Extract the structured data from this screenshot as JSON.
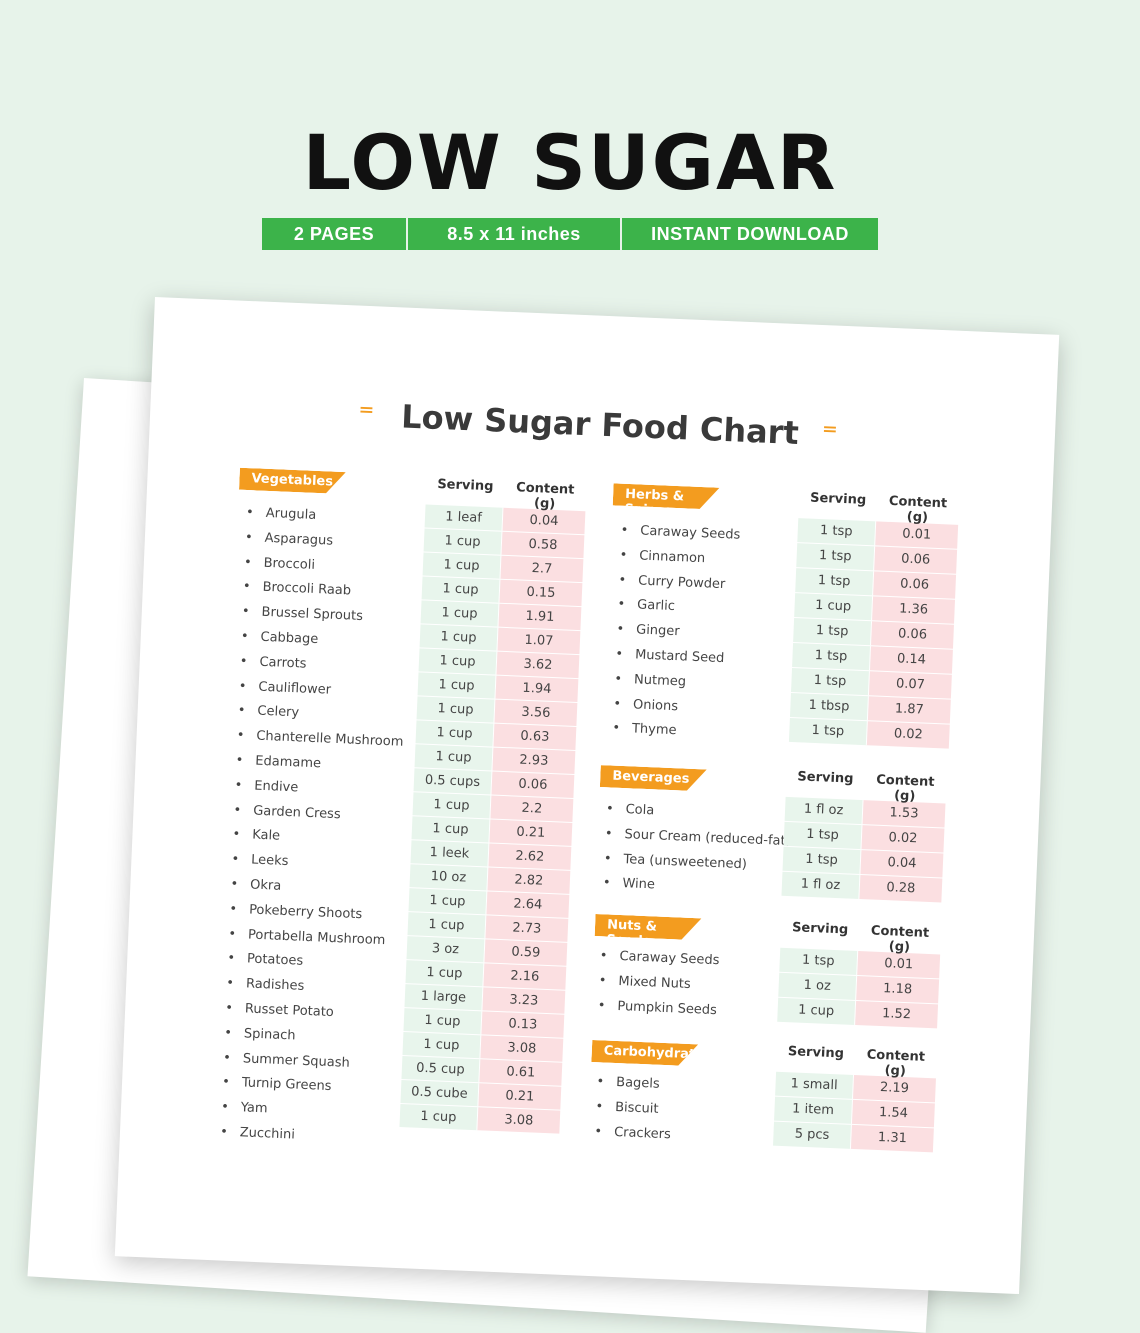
{
  "hero": {
    "title": "LOW SUGAR",
    "badges": [
      "2 PAGES",
      "8.5 x 11 inches",
      "INSTANT DOWNLOAD"
    ]
  },
  "colors": {
    "background": "#e7f3ea",
    "badge_green": "#3cb34a",
    "label_orange": "#f39c1f",
    "serving_cell": "#e8f5ec",
    "content_cell": "#fbdfe1"
  },
  "chart": {
    "title": "Low Sugar Food Chart",
    "col_serving": "Serving",
    "col_content": "Content (g)",
    "sections": {
      "vegetables": {
        "label": "Vegetables",
        "items": [
          "Arugula",
          "Asparagus",
          "Broccoli",
          "Broccoli Raab",
          "Brussel Sprouts",
          "Cabbage",
          "Carrots",
          "Cauliflower",
          "Celery",
          "Chanterelle Mushroom",
          "Edamame",
          "Endive",
          "Garden Cress",
          "Kale",
          "Leeks",
          "Okra",
          "Pokeberry Shoots",
          "Portabella Mushroom",
          "Potatoes",
          "Radishes",
          "Russet Potato",
          "Spinach",
          "Summer Squash",
          "Turnip Greens",
          "Yam",
          "Zucchini"
        ],
        "rows": [
          [
            "1 leaf",
            "0.04"
          ],
          [
            "1 cup",
            "0.58"
          ],
          [
            "1 cup",
            "2.7"
          ],
          [
            "1 cup",
            "0.15"
          ],
          [
            "1 cup",
            "1.91"
          ],
          [
            "1 cup",
            "1.07"
          ],
          [
            "1 cup",
            "3.62"
          ],
          [
            "1 cup",
            "1.94"
          ],
          [
            "1 cup",
            "3.56"
          ],
          [
            "1 cup",
            "0.63"
          ],
          [
            "1 cup",
            "2.93"
          ],
          [
            "0.5 cups",
            "0.06"
          ],
          [
            "1 cup",
            "2.2"
          ],
          [
            "1 cup",
            "0.21"
          ],
          [
            "1 leek",
            "2.62"
          ],
          [
            "10 oz",
            "2.82"
          ],
          [
            "1 cup",
            "2.64"
          ],
          [
            "1 cup",
            "2.73"
          ],
          [
            "3 oz",
            "0.59"
          ],
          [
            "1 cup",
            "2.16"
          ],
          [
            "1 large",
            "3.23"
          ],
          [
            "1 cup",
            "0.13"
          ],
          [
            "1 cup",
            "3.08"
          ],
          [
            "0.5 cup",
            "0.61"
          ],
          [
            "0.5 cube",
            "0.21"
          ],
          [
            "1 cup",
            "3.08"
          ]
        ]
      },
      "herbs": {
        "label": "Herbs & Spices",
        "items": [
          "Caraway Seeds",
          "Cinnamon",
          "Curry Powder",
          "Garlic",
          "Ginger",
          "Mustard Seed",
          "Nutmeg",
          "Onions",
          "Thyme"
        ],
        "rows": [
          [
            "1 tsp",
            "0.01"
          ],
          [
            "1 tsp",
            "0.06"
          ],
          [
            "1 tsp",
            "0.06"
          ],
          [
            "1 cup",
            "1.36"
          ],
          [
            "1 tsp",
            "0.06"
          ],
          [
            "1 tsp",
            "0.14"
          ],
          [
            "1 tsp",
            "0.07"
          ],
          [
            "1 tbsp",
            "1.87"
          ],
          [
            "1 tsp",
            "0.02"
          ]
        ]
      },
      "beverages": {
        "label": "Beverages",
        "items": [
          "Cola",
          "Sour Cream (reduced-fat)",
          "Tea (unsweetened)",
          "Wine"
        ],
        "rows": [
          [
            "1 fl oz",
            "1.53"
          ],
          [
            "1 tsp",
            "0.02"
          ],
          [
            "1 tsp",
            "0.04"
          ],
          [
            "1 fl oz",
            "0.28"
          ]
        ]
      },
      "nuts": {
        "label": "Nuts & Seeds",
        "items": [
          "Caraway Seeds",
          "Mixed Nuts",
          "Pumpkin Seeds"
        ],
        "rows": [
          [
            "1 tsp",
            "0.01"
          ],
          [
            "1 oz",
            "1.18"
          ],
          [
            "1 cup",
            "1.52"
          ]
        ]
      },
      "carbs": {
        "label": "Carbohydrates",
        "items": [
          "Bagels",
          "Biscuit",
          "Crackers"
        ],
        "rows": [
          [
            "1 small",
            "2.19"
          ],
          [
            "1 item",
            "1.54"
          ],
          [
            "5 pcs",
            "1.31"
          ]
        ]
      }
    }
  }
}
